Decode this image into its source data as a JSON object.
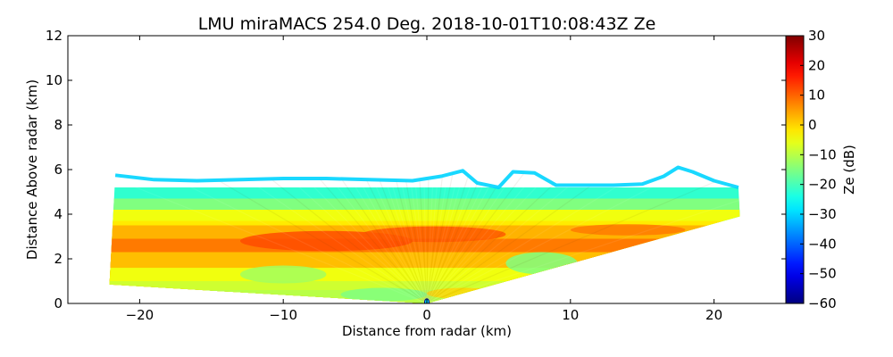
{
  "chart_data": {
    "type": "heatmap",
    "title": "LMU miraMACS 254.0 Deg. 2018-10-01T10:08:43Z  Ze",
    "xlabel": "Distance from radar (km)",
    "ylabel": "Distance Above radar  (km)",
    "colorbar_label": "Ze (dB)",
    "xlim": [
      -25,
      25
    ],
    "ylim": [
      0,
      12
    ],
    "color_range": [
      -60,
      30
    ],
    "colormap": "jet",
    "x_ticks": [
      -20,
      -10,
      0,
      10,
      20
    ],
    "x_tick_labels": [
      "−20",
      "−10",
      "0",
      "10",
      "20"
    ],
    "y_ticks": [
      0,
      2,
      4,
      6,
      8,
      10,
      12
    ],
    "y_tick_labels": [
      "0",
      "2",
      "4",
      "6",
      "8",
      "10",
      "12"
    ],
    "colorbar_ticks": [
      30,
      20,
      10,
      0,
      -10,
      -20,
      -30,
      -40,
      -50,
      -60
    ],
    "colorbar_tick_labels": [
      "30",
      "20",
      "10",
      "0",
      "−10",
      "−20",
      "−30",
      "−40",
      "−50",
      "−60"
    ],
    "scan": {
      "left_edge": [
        [
          -22.1,
          0.85
        ],
        [
          -21.7,
          5.75
        ]
      ],
      "right_edge": [
        [
          21.8,
          3.9
        ],
        [
          21.7,
          5.2
        ]
      ],
      "lower_boundary_left": [
        [
          -22.1,
          0.85
        ],
        [
          0,
          0
        ]
      ],
      "lower_boundary_right": [
        [
          0,
          0
        ],
        [
          21.8,
          3.9
        ]
      ],
      "cloud_top": [
        [
          -21.7,
          5.75
        ],
        [
          -19,
          5.55
        ],
        [
          -16,
          5.5
        ],
        [
          -13,
          5.55
        ],
        [
          -10,
          5.6
        ],
        [
          -7,
          5.6
        ],
        [
          -4,
          5.55
        ],
        [
          -1,
          5.5
        ],
        [
          1,
          5.7
        ],
        [
          2.5,
          5.95
        ],
        [
          3.5,
          5.4
        ],
        [
          5,
          5.2
        ],
        [
          6,
          5.9
        ],
        [
          7.5,
          5.85
        ],
        [
          9,
          5.3
        ],
        [
          11,
          5.3
        ],
        [
          13,
          5.3
        ],
        [
          15,
          5.35
        ],
        [
          16.5,
          5.7
        ],
        [
          17.5,
          6.1
        ],
        [
          18.5,
          5.9
        ],
        [
          20,
          5.5
        ],
        [
          21.7,
          5.2
        ]
      ],
      "cloud_top_ze": -30,
      "layers": [
        {
          "y_top": 5.2,
          "ze": -22
        },
        {
          "y_top": 4.7,
          "ze": -15
        },
        {
          "y_top": 4.2,
          "ze": -5
        },
        {
          "y_top": 3.7,
          "ze": -2
        },
        {
          "y_top": 3.5,
          "ze": 3
        },
        {
          "y_top": 2.9,
          "ze": 8
        },
        {
          "y_top": 2.3,
          "ze": 2
        },
        {
          "y_top": 1.6,
          "ze": -5
        },
        {
          "y_top": 1.0,
          "ze": -8
        },
        {
          "y_top": 0.6,
          "ze": -10
        }
      ],
      "patches": [
        {
          "x": -7,
          "y": 2.8,
          "rx": 6,
          "ry": 0.45,
          "ze": 12
        },
        {
          "x": 0.5,
          "y": 3.1,
          "rx": 5,
          "ry": 0.35,
          "ze": 11
        },
        {
          "x": 14,
          "y": 3.3,
          "rx": 4,
          "ry": 0.25,
          "ze": 8
        },
        {
          "x": 8,
          "y": 1.8,
          "rx": 2.5,
          "ry": 0.5,
          "ze": -15
        },
        {
          "x": -10,
          "y": 1.3,
          "rx": 3,
          "ry": 0.4,
          "ze": -12
        },
        {
          "x": -3,
          "y": 0.4,
          "rx": 3,
          "ry": 0.3,
          "ze": -15
        },
        {
          "x": 2.5,
          "y": 0.45,
          "rx": 2.5,
          "ry": 0.25,
          "ze": 0
        }
      ]
    }
  }
}
